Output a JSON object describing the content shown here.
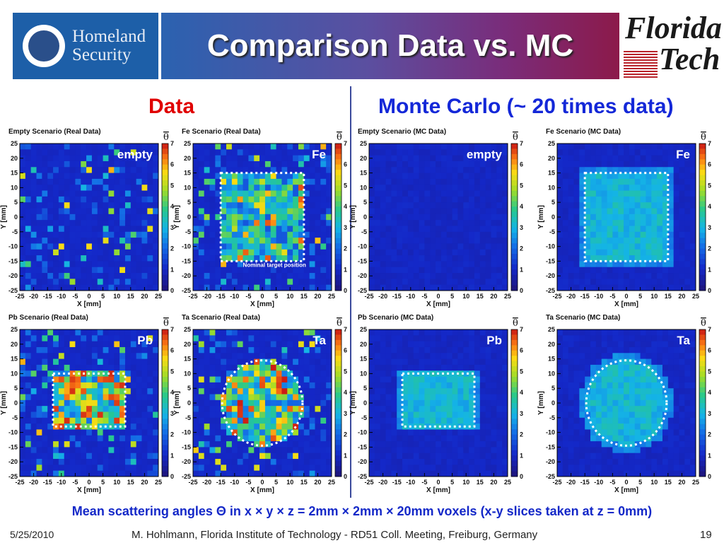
{
  "header": {
    "dhs_logo_text": [
      "Homeland",
      "Security"
    ],
    "title": "Comparison Data vs. MC",
    "ft_logo_text": [
      "Florida",
      "Tech"
    ]
  },
  "sections": {
    "data": "Data",
    "mc": "Monte Carlo (~ 20 times data)"
  },
  "caption": "Mean scattering angles Θ in x × y × z = 2mm × 2mm × 20mm voxels (x-y slices taken at z = 0mm)",
  "footer": {
    "date": "5/25/2010",
    "text": "M. Hohlmann, Florida Institute of Technology - RD51 Coll. Meeting, Freiburg, Germany",
    "page": "19"
  },
  "colors": {
    "title_gradient": [
      "#2b62b0",
      "#8c1a4a"
    ],
    "data_label": "#e00000",
    "mc_label": "#1428d8",
    "caption": "#1428c8"
  },
  "chart_data": [
    {
      "type": "heatmap",
      "title": "Empty Scenario (Real Data)",
      "label": "empty",
      "source": "data",
      "shape": "none",
      "xlabel": "X [mm]",
      "ylabel": "Y [mm]",
      "zlabel": "θ",
      "xlim": [
        -25,
        25
      ],
      "ylim": [
        -25,
        25
      ],
      "zlim": [
        0,
        7
      ],
      "xticks": [
        -25,
        -20,
        -15,
        -10,
        -5,
        0,
        5,
        10,
        15,
        20,
        25
      ],
      "yticks": [
        -25,
        -20,
        -15,
        -10,
        -5,
        0,
        5,
        10,
        15,
        20,
        25
      ],
      "zticks": [
        0,
        1,
        2,
        3,
        4,
        5,
        6,
        7
      ]
    },
    {
      "type": "heatmap",
      "title": "Fe Scenario (Real Data)",
      "label": "Fe",
      "source": "data",
      "shape": "square",
      "annotation": "Nominal target position",
      "xlabel": "X [mm]",
      "ylabel": "Y [mm]",
      "zlabel": "θ",
      "xlim": [
        -25,
        25
      ],
      "ylim": [
        -25,
        25
      ],
      "zlim": [
        0,
        7
      ],
      "xticks": [
        -25,
        -20,
        -15,
        -10,
        -5,
        0,
        5,
        10,
        15,
        20,
        25
      ],
      "yticks": [
        -25,
        -20,
        -15,
        -10,
        -5,
        0,
        5,
        10,
        15,
        20,
        25
      ],
      "zticks": [
        0,
        1,
        2,
        3,
        4,
        5,
        6,
        7
      ]
    },
    {
      "type": "heatmap",
      "title": "Empty Scenario (MC Data)",
      "label": "empty",
      "source": "mc",
      "shape": "none",
      "xlabel": "X [mm]",
      "ylabel": "Y [mm]",
      "zlabel": "θ",
      "xlim": [
        -25,
        25
      ],
      "ylim": [
        -25,
        25
      ],
      "zlim": [
        0,
        7
      ],
      "xticks": [
        -25,
        -20,
        -15,
        -10,
        -5,
        0,
        5,
        10,
        15,
        20,
        25
      ],
      "yticks": [
        -25,
        -20,
        -15,
        -10,
        -5,
        0,
        5,
        10,
        15,
        20,
        25
      ],
      "zticks": [
        0,
        1,
        2,
        3,
        4,
        5,
        6,
        7
      ]
    },
    {
      "type": "heatmap",
      "title": "Fe Scenario (MC Data)",
      "label": "Fe",
      "source": "mc",
      "shape": "square",
      "xlabel": "X [mm]",
      "ylabel": "Y [mm]",
      "zlabel": "θ",
      "xlim": [
        -25,
        25
      ],
      "ylim": [
        -25,
        25
      ],
      "zlim": [
        0,
        7
      ],
      "xticks": [
        -25,
        -20,
        -15,
        -10,
        -5,
        0,
        5,
        10,
        15,
        20,
        25
      ],
      "yticks": [
        -25,
        -20,
        -15,
        -10,
        -5,
        0,
        5,
        10,
        15,
        20,
        25
      ],
      "zticks": [
        0,
        1,
        2,
        3,
        4,
        5,
        6,
        7
      ]
    },
    {
      "type": "heatmap",
      "title": "Pb Scenario (Real Data)",
      "label": "Pb",
      "source": "data",
      "shape": "rect",
      "xlabel": "X [mm]",
      "ylabel": "Y [mm]",
      "zlabel": "θ",
      "xlim": [
        -25,
        25
      ],
      "ylim": [
        -25,
        25
      ],
      "zlim": [
        0,
        7
      ],
      "xticks": [
        -25,
        -20,
        -15,
        -10,
        -5,
        0,
        5,
        10,
        15,
        20,
        25
      ],
      "yticks": [
        -25,
        -20,
        -15,
        -10,
        -5,
        0,
        5,
        10,
        15,
        20,
        25
      ],
      "zticks": [
        0,
        1,
        2,
        3,
        4,
        5,
        6,
        7
      ]
    },
    {
      "type": "heatmap",
      "title": "Ta Scenario (Real Data)",
      "label": "Ta",
      "source": "data",
      "shape": "circle",
      "xlabel": "X [mm]",
      "ylabel": "Y [mm]",
      "zlabel": "θ",
      "xlim": [
        -25,
        25
      ],
      "ylim": [
        -25,
        25
      ],
      "zlim": [
        0,
        7
      ],
      "xticks": [
        -25,
        -20,
        -15,
        -10,
        -5,
        0,
        5,
        10,
        15,
        20,
        25
      ],
      "yticks": [
        -25,
        -20,
        -15,
        -10,
        -5,
        0,
        5,
        10,
        15,
        20,
        25
      ],
      "zticks": [
        0,
        1,
        2,
        3,
        4,
        5,
        6,
        7
      ]
    },
    {
      "type": "heatmap",
      "title": "Pb Scenario (MC Data)",
      "label": "Pb",
      "source": "mc",
      "shape": "rect",
      "xlabel": "X [mm]",
      "ylabel": "Y [mm]",
      "zlabel": "θ",
      "xlim": [
        -25,
        25
      ],
      "ylim": [
        -25,
        25
      ],
      "zlim": [
        0,
        7
      ],
      "xticks": [
        -25,
        -20,
        -15,
        -10,
        -5,
        0,
        5,
        10,
        15,
        20,
        25
      ],
      "yticks": [
        -25,
        -20,
        -15,
        -10,
        -5,
        0,
        5,
        10,
        15,
        20,
        25
      ],
      "zticks": [
        0,
        1,
        2,
        3,
        4,
        5,
        6,
        7
      ]
    },
    {
      "type": "heatmap",
      "title": "Ta Scenario (MC Data)",
      "label": "Ta",
      "source": "mc",
      "shape": "circle",
      "xlabel": "X [mm]",
      "ylabel": "Y [mm]",
      "zlabel": "θ",
      "xlim": [
        -25,
        25
      ],
      "ylim": [
        -25,
        25
      ],
      "zlim": [
        0,
        7
      ],
      "xticks": [
        -25,
        -20,
        -15,
        -10,
        -5,
        0,
        5,
        10,
        15,
        20,
        25
      ],
      "yticks": [
        -25,
        -20,
        -15,
        -10,
        -5,
        0,
        5,
        10,
        15,
        20,
        25
      ],
      "zticks": [
        0,
        1,
        2,
        3,
        4,
        5,
        6,
        7
      ]
    }
  ]
}
